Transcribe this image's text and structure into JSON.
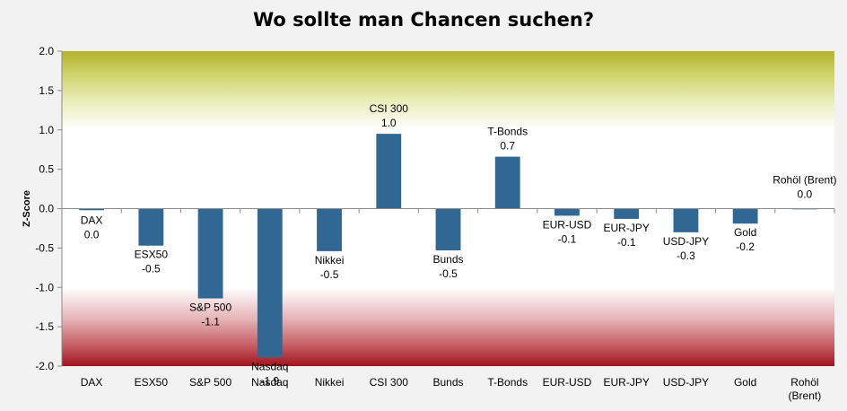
{
  "chart_data": {
    "type": "bar",
    "title": "Wo sollte man Chancen suchen?",
    "xlabel": "",
    "ylabel": "Z-Score",
    "ylim": [
      -2.0,
      2.0
    ],
    "yticks": [
      "2.0",
      "1.5",
      "1.0",
      "0.5",
      "0.0",
      "-0.5",
      "-1.0",
      "-1.5",
      "-2.0"
    ],
    "ytick_values": [
      2.0,
      1.5,
      1.0,
      0.5,
      0.0,
      -0.5,
      -1.0,
      -1.5,
      -2.0
    ],
    "grid": false,
    "legend": "none",
    "background_bands": [
      {
        "from": 1.0,
        "to": 2.0,
        "color": "#c8c850",
        "description": "green-yellow zone"
      },
      {
        "from": -2.0,
        "to": -1.0,
        "color": "#a01820",
        "description": "red zone"
      }
    ],
    "bar_color": "#316793",
    "categories": [
      "DAX",
      "ESX50",
      "S&P 500",
      "Nasdaq",
      "Nikkei",
      "CSI 300",
      "Bunds",
      "T-Bonds",
      "EUR-USD",
      "EUR-JPY",
      "USD-JPY",
      "Gold",
      "Rohöl (Brent)"
    ],
    "category_axis_labels": [
      [
        "DAX"
      ],
      [
        "ESX50"
      ],
      [
        "S&P 500"
      ],
      [
        "Nasdaq"
      ],
      [
        "Nikkei"
      ],
      [
        "CSI 300"
      ],
      [
        "Bunds"
      ],
      [
        "T-Bonds"
      ],
      [
        "EUR-USD"
      ],
      [
        "EUR-JPY"
      ],
      [
        "USD-JPY"
      ],
      [
        "Gold"
      ],
      [
        "Rohöl",
        "(Brent)"
      ]
    ],
    "values": [
      -0.02,
      -0.47,
      -1.14,
      -1.89,
      -0.54,
      0.95,
      -0.53,
      0.66,
      -0.09,
      -0.13,
      -0.3,
      -0.19,
      0.0
    ],
    "data_labels": [
      "0.0",
      "-0.5",
      "-1.1",
      "-1.9",
      "-0.5",
      "1.0",
      "-0.5",
      "0.7",
      "-0.1",
      "-0.1",
      "-0.3",
      "-0.2",
      "0.0"
    ]
  }
}
